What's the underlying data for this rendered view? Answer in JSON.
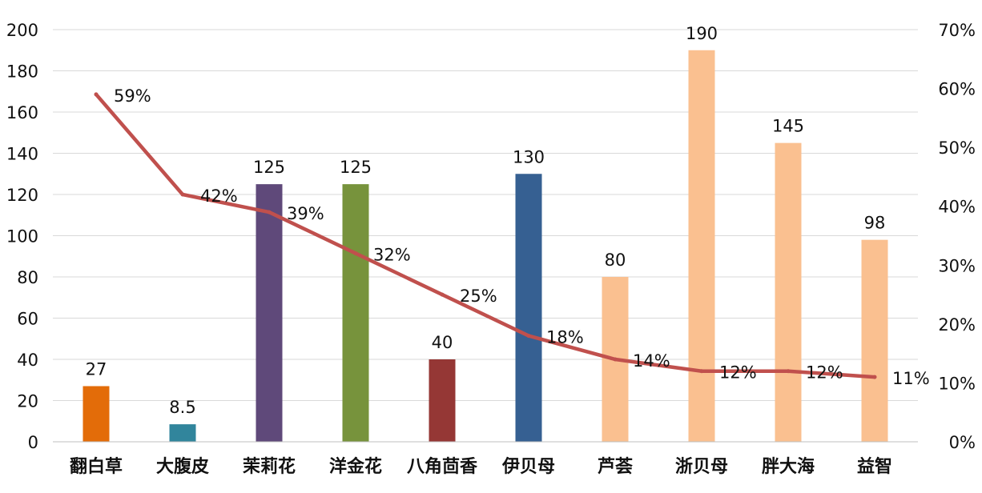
{
  "chart_data": {
    "type": "bar",
    "categories": [
      "翻白草",
      "大腹皮",
      "茉莉花",
      "洋金花",
      "八角茴香",
      "伊贝母",
      "芦荟",
      "浙贝母",
      "胖大海",
      "益智"
    ],
    "series": [
      {
        "type": "bar",
        "values": [
          27,
          8.5,
          125,
          125,
          40,
          130,
          80,
          190,
          145,
          98
        ],
        "labels": [
          "27",
          "8.5",
          "125",
          "125",
          "40",
          "130",
          "80",
          "190",
          "145",
          "98"
        ],
        "colors": [
          "#E36C09",
          "#31859C",
          "#5F497A",
          "#77933C",
          "#953735",
          "#366092",
          "#FAC090",
          "#FAC090",
          "#FAC090",
          "#FAC090"
        ],
        "axis": "left"
      },
      {
        "type": "line",
        "values": [
          59,
          42,
          39,
          32,
          25,
          18,
          14,
          12,
          12,
          11
        ],
        "labels": [
          "59%",
          "42%",
          "39%",
          "32%",
          "25%",
          "18%",
          "14%",
          "12%",
          "12%",
          "11%"
        ],
        "color": "#C0504D",
        "axis": "right"
      }
    ],
    "y_left": {
      "ylim": [
        0,
        200
      ],
      "ticks": [
        "0",
        "20",
        "40",
        "60",
        "80",
        "100",
        "120",
        "140",
        "160",
        "180",
        "200"
      ]
    },
    "y_right": {
      "ylim": [
        0,
        70
      ],
      "ticks": [
        "0%",
        "10%",
        "20%",
        "30%",
        "40%",
        "50%",
        "60%",
        "70%"
      ]
    },
    "grid": true,
    "gridColor": "#D9D9D9"
  }
}
